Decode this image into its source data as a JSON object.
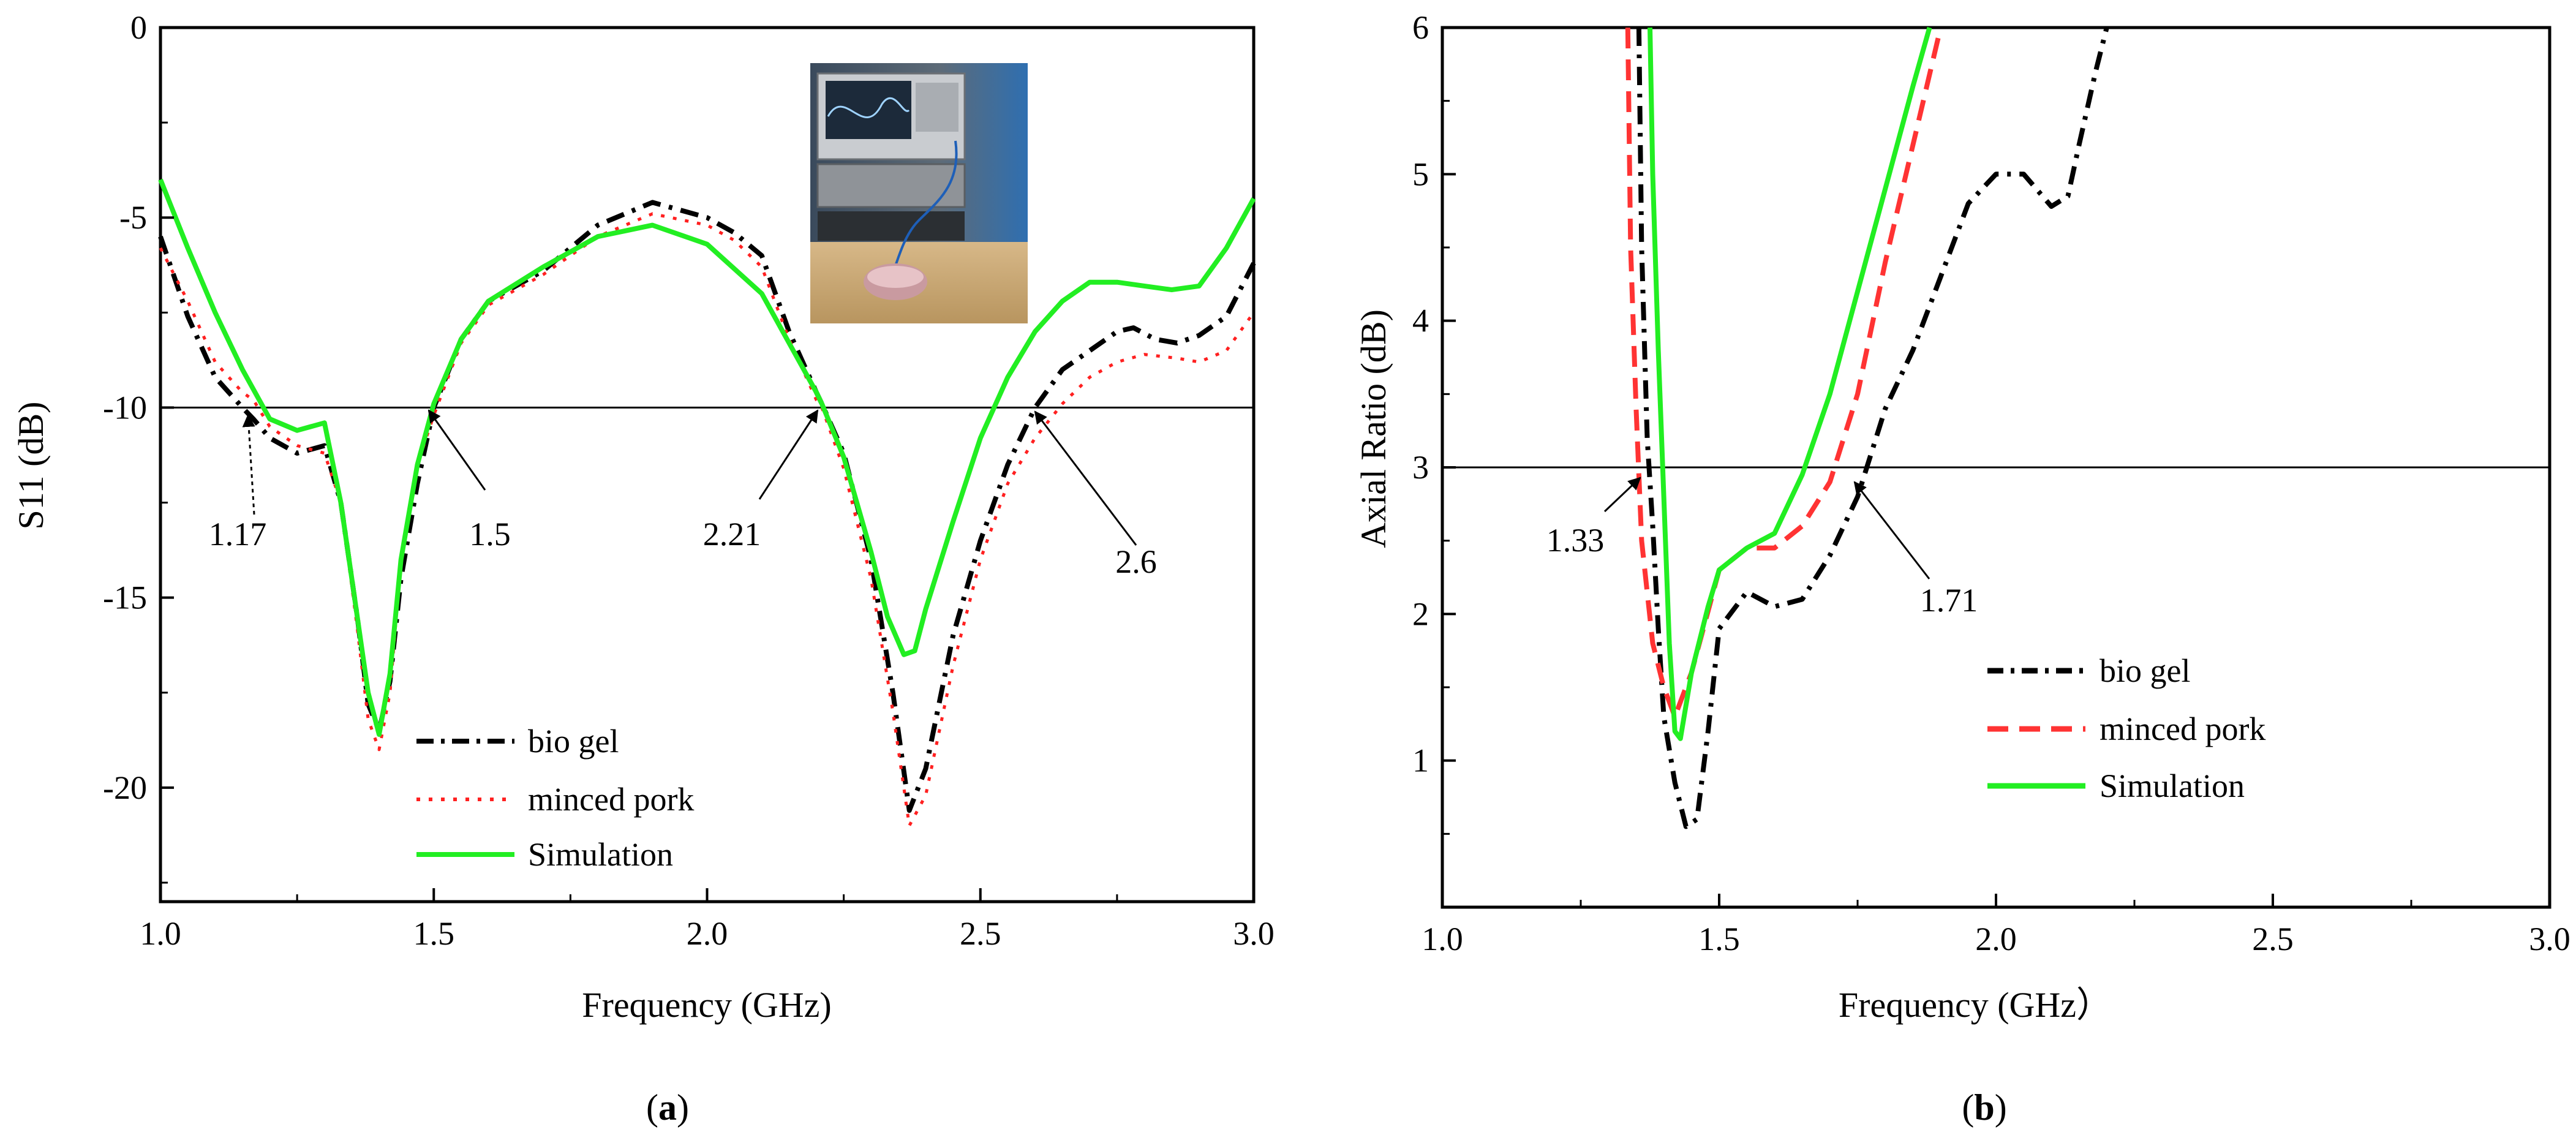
{
  "chart_data": [
    {
      "id": "a",
      "type": "line",
      "caption_letter": "a",
      "xlabel": "Frequency (GHz)",
      "ylabel": "S11 (dB)",
      "xlim": [
        1.0,
        3.0
      ],
      "ylim": [
        -23,
        0
      ],
      "xticks": [
        1.0,
        1.5,
        2.0,
        2.5,
        3.0
      ],
      "xtick_labels": [
        "1.0",
        "1.5",
        "2.0",
        "2.5",
        "3.0"
      ],
      "yticks": [
        0,
        -5,
        -10,
        -15,
        -20
      ],
      "ytick_labels": [
        "0",
        "-5",
        "-10",
        "-15",
        "-20"
      ],
      "reference_line": -10,
      "grid": false,
      "legend_position": "lower-center",
      "inset_photo": "measurement-setup-photo",
      "series": [
        {
          "name": "bio gel",
          "color": "#000000",
          "dash": "dashdot",
          "x": [
            1.0,
            1.05,
            1.1,
            1.15,
            1.17,
            1.2,
            1.25,
            1.3,
            1.33,
            1.36,
            1.38,
            1.4,
            1.42,
            1.44,
            1.47,
            1.5,
            1.55,
            1.6,
            1.7,
            1.8,
            1.9,
            2.0,
            2.05,
            2.1,
            2.15,
            2.2,
            2.21,
            2.25,
            2.3,
            2.34,
            2.37,
            2.4,
            2.45,
            2.5,
            2.55,
            2.6,
            2.65,
            2.7,
            2.75,
            2.78,
            2.82,
            2.86,
            2.9,
            2.95,
            3.0
          ],
          "y": [
            -5.5,
            -7.6,
            -9.2,
            -10.0,
            -10.3,
            -10.8,
            -11.2,
            -11.0,
            -12.5,
            -15.5,
            -17.8,
            -18.5,
            -17.2,
            -14.5,
            -12.0,
            -10.0,
            -8.2,
            -7.2,
            -6.4,
            -5.2,
            -4.6,
            -5.0,
            -5.4,
            -6.0,
            -8.0,
            -9.6,
            -9.9,
            -11.2,
            -14.0,
            -17.5,
            -20.6,
            -19.5,
            -16.0,
            -13.5,
            -11.5,
            -10.0,
            -9.0,
            -8.5,
            -8.0,
            -7.9,
            -8.2,
            -8.3,
            -8.1,
            -7.6,
            -6.2
          ]
        },
        {
          "name": "minced pork",
          "color": "#ff2020",
          "dash": "dot",
          "x": [
            1.0,
            1.05,
            1.1,
            1.15,
            1.17,
            1.2,
            1.25,
            1.3,
            1.33,
            1.36,
            1.38,
            1.4,
            1.42,
            1.44,
            1.47,
            1.5,
            1.55,
            1.6,
            1.7,
            1.8,
            1.9,
            2.0,
            2.05,
            2.1,
            2.15,
            2.2,
            2.21,
            2.25,
            2.3,
            2.34,
            2.37,
            2.4,
            2.45,
            2.5,
            2.55,
            2.6,
            2.65,
            2.7,
            2.75,
            2.8,
            2.86,
            2.9,
            2.95,
            3.0
          ],
          "y": [
            -5.8,
            -7.2,
            -8.8,
            -9.6,
            -9.8,
            -10.5,
            -11.0,
            -11.2,
            -12.5,
            -15.8,
            -18.2,
            -19.0,
            -17.5,
            -14.0,
            -11.5,
            -10.2,
            -8.3,
            -7.3,
            -6.5,
            -5.5,
            -4.9,
            -5.2,
            -5.6,
            -6.3,
            -8.2,
            -9.8,
            -10.0,
            -11.6,
            -14.5,
            -18.0,
            -21.0,
            -20.2,
            -16.8,
            -14.0,
            -12.0,
            -10.8,
            -9.9,
            -9.2,
            -8.8,
            -8.6,
            -8.7,
            -8.8,
            -8.5,
            -7.5
          ]
        },
        {
          "name": "Simulation",
          "color": "#22ee22",
          "dash": "solid",
          "x": [
            1.0,
            1.05,
            1.1,
            1.15,
            1.2,
            1.25,
            1.3,
            1.33,
            1.35,
            1.38,
            1.4,
            1.42,
            1.44,
            1.47,
            1.5,
            1.55,
            1.6,
            1.7,
            1.8,
            1.9,
            2.0,
            2.1,
            2.15,
            2.2,
            2.21,
            2.25,
            2.3,
            2.33,
            2.36,
            2.38,
            2.4,
            2.45,
            2.5,
            2.55,
            2.6,
            2.65,
            2.7,
            2.75,
            2.8,
            2.85,
            2.9,
            2.95,
            3.0
          ],
          "y": [
            -4.0,
            -5.8,
            -7.5,
            -9.0,
            -10.3,
            -10.6,
            -10.4,
            -12.5,
            -14.5,
            -17.5,
            -18.6,
            -17.0,
            -14.0,
            -11.5,
            -9.9,
            -8.2,
            -7.2,
            -6.3,
            -5.5,
            -5.2,
            -5.7,
            -7.0,
            -8.3,
            -9.6,
            -9.9,
            -11.3,
            -13.8,
            -15.5,
            -16.5,
            -16.4,
            -15.3,
            -13.0,
            -10.8,
            -9.2,
            -8.0,
            -7.2,
            -6.7,
            -6.7,
            -6.8,
            -6.9,
            -6.8,
            -5.8,
            -4.5
          ]
        }
      ],
      "annotations": [
        {
          "text": "1.17",
          "x": 1.17,
          "y": -10
        },
        {
          "text": "1.5",
          "x": 1.5,
          "y": -10
        },
        {
          "text": "2.21",
          "x": 2.21,
          "y": -10
        },
        {
          "text": "2.6",
          "x": 2.6,
          "y": -10
        }
      ]
    },
    {
      "id": "b",
      "type": "line",
      "caption_letter": "b",
      "xlabel": "Frequency (GHz）",
      "ylabel": "Axial Ratio (dB)",
      "xlim": [
        1.0,
        3.0
      ],
      "ylim": [
        0,
        6
      ],
      "xticks": [
        1.0,
        1.5,
        2.0,
        2.5,
        3.0
      ],
      "xtick_labels": [
        "1.0",
        "1.5",
        "2.0",
        "2.5",
        "3.0"
      ],
      "yticks": [
        6,
        5,
        4,
        3,
        2,
        1
      ],
      "ytick_labels": [
        "6",
        "5",
        "4",
        "3",
        "2",
        "1"
      ],
      "reference_line": 3,
      "grid": false,
      "legend_position": "lower-center",
      "series": [
        {
          "name": "bio gel",
          "color": "#000000",
          "dash": "dashdot",
          "x": [
            1.355,
            1.36,
            1.37,
            1.38,
            1.39,
            1.4,
            1.42,
            1.44,
            1.46,
            1.48,
            1.5,
            1.55,
            1.6,
            1.65,
            1.7,
            1.75,
            1.8,
            1.85,
            1.9,
            1.95,
            2.0,
            2.05,
            2.1,
            2.13,
            2.15,
            2.18,
            2.2
          ],
          "y": [
            6.0,
            4.5,
            3.2,
            2.6,
            1.9,
            1.3,
            0.85,
            0.55,
            0.6,
            1.2,
            1.9,
            2.15,
            2.05,
            2.1,
            2.4,
            2.8,
            3.4,
            3.8,
            4.3,
            4.8,
            5.0,
            5.0,
            4.78,
            4.85,
            5.2,
            5.7,
            6.0
          ]
        },
        {
          "name": "minced pork",
          "color": "#ff3333",
          "dash": "dash",
          "x": [
            1.335,
            1.34,
            1.35,
            1.36,
            1.38,
            1.4,
            1.42,
            1.45,
            1.5,
            1.55,
            1.6,
            1.65,
            1.7,
            1.75,
            1.8,
            1.85,
            1.9
          ],
          "y": [
            6.0,
            4.5,
            3.4,
            2.5,
            1.8,
            1.5,
            1.3,
            1.6,
            2.3,
            2.45,
            2.45,
            2.6,
            2.9,
            3.5,
            4.4,
            5.2,
            6.0
          ]
        },
        {
          "name": "Simulation",
          "color": "#22ee22",
          "dash": "solid",
          "x": [
            1.375,
            1.38,
            1.39,
            1.4,
            1.41,
            1.42,
            1.43,
            1.45,
            1.48,
            1.5,
            1.55,
            1.6,
            1.65,
            1.7,
            1.75,
            1.8,
            1.85,
            1.88
          ],
          "y": [
            6.0,
            5.0,
            3.8,
            2.8,
            1.8,
            1.2,
            1.15,
            1.6,
            2.05,
            2.3,
            2.45,
            2.55,
            2.95,
            3.5,
            4.2,
            4.9,
            5.6,
            6.0
          ]
        }
      ],
      "annotations": [
        {
          "text": "1.33",
          "x": 1.33,
          "y": 3
        },
        {
          "text": "1.71",
          "x": 1.71,
          "y": 3
        }
      ]
    }
  ]
}
